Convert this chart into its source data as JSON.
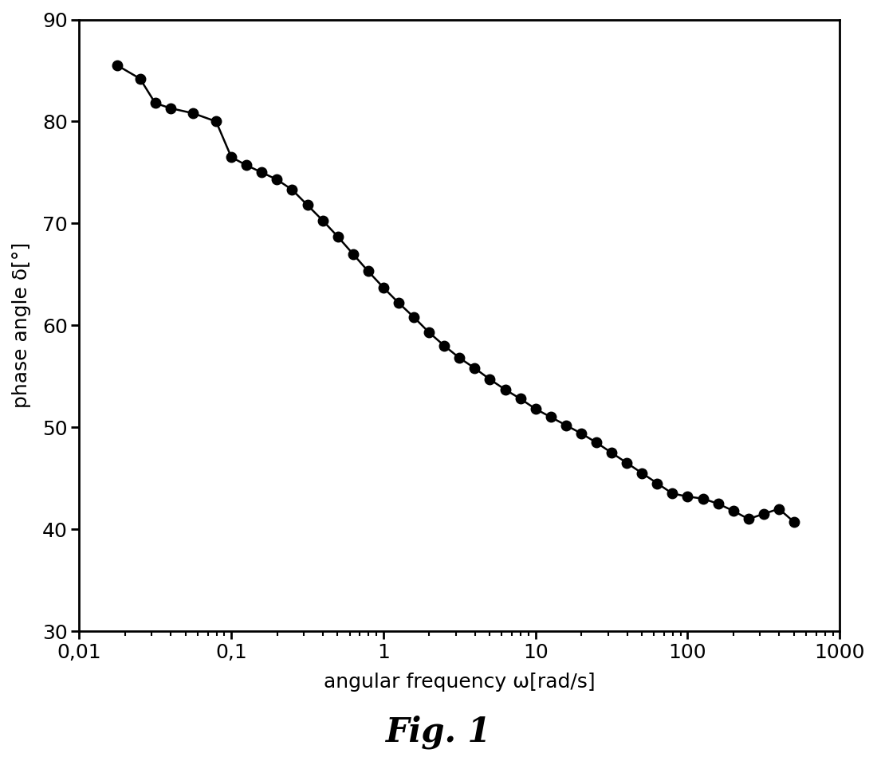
{
  "x": [
    0.0178,
    0.0251,
    0.0316,
    0.0398,
    0.0562,
    0.0794,
    0.1,
    0.1259,
    0.1585,
    0.1995,
    0.2512,
    0.3162,
    0.3981,
    0.5012,
    0.631,
    0.7943,
    1.0,
    1.259,
    1.585,
    1.995,
    2.512,
    3.162,
    3.981,
    5.012,
    6.31,
    7.943,
    10.0,
    12.59,
    15.85,
    19.95,
    25.12,
    31.62,
    39.81,
    50.12,
    63.1,
    79.43,
    100.0,
    125.9,
    158.5,
    199.5,
    251.2,
    316.2,
    398.1,
    501.2
  ],
  "y": [
    85.5,
    84.2,
    81.8,
    81.3,
    80.8,
    80.0,
    76.5,
    75.7,
    75.0,
    74.3,
    73.3,
    71.8,
    70.3,
    68.7,
    67.0,
    65.3,
    63.7,
    62.2,
    60.8,
    59.3,
    58.0,
    56.8,
    55.8,
    54.7,
    53.7,
    52.8,
    51.8,
    51.0,
    50.2,
    49.4,
    48.5,
    47.5,
    46.5,
    45.5,
    44.5,
    43.5,
    43.2,
    43.0,
    42.5,
    41.8,
    41.0,
    41.5,
    42.0,
    40.7
  ],
  "xlabel": "angular frequency ω[rad/s]",
  "ylabel": "phase angle δ[°]",
  "title": "Fig. 1",
  "xlim": [
    0.01,
    1000
  ],
  "ylim": [
    30,
    90
  ],
  "yticks": [
    30,
    40,
    50,
    60,
    70,
    80,
    90
  ],
  "xtick_vals": [
    0.01,
    0.1,
    1,
    10,
    100,
    1000
  ],
  "xtick_labels": [
    "0,01",
    "0,1",
    "1",
    "10",
    "100",
    "1000"
  ],
  "line_color": "#000000",
  "marker_color": "#000000",
  "marker_size": 9,
  "linewidth": 1.8,
  "bg_color": "#ffffff",
  "fig_width": 11.0,
  "fig_height": 9.5,
  "dpi": 100,
  "axis_labelsize": 18,
  "tick_labelsize": 18,
  "title_fontsize": 30
}
